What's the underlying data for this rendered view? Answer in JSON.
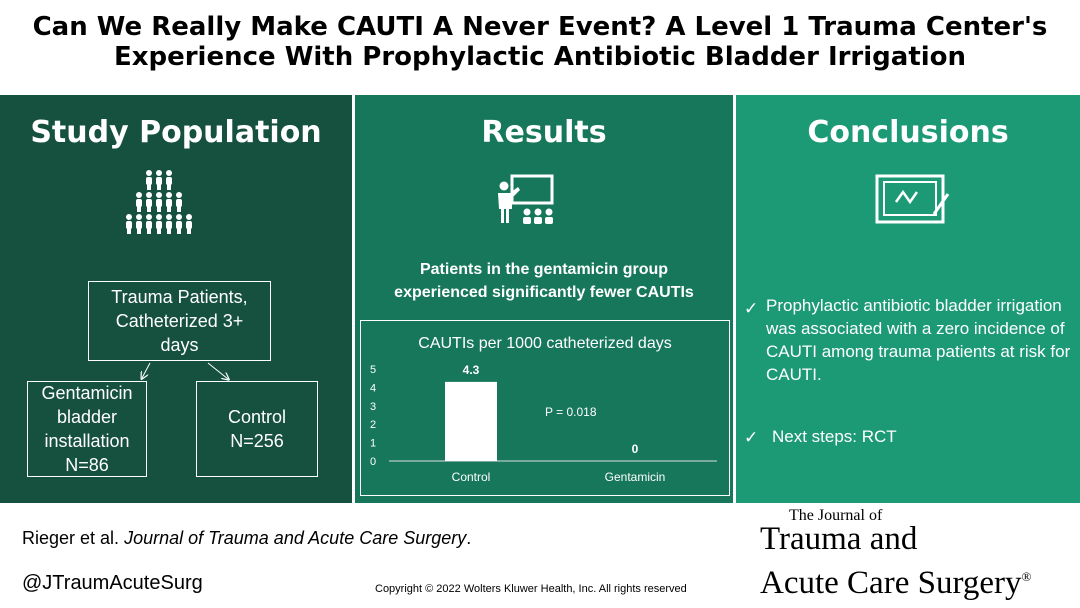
{
  "title": {
    "line1": "Can We Really Make CAUTI A Never Event? A Level 1 Trauma Center's",
    "line2": "Experience With Prophylactic Antibiotic Bladder Irrigation"
  },
  "study": {
    "heading": "Study Population",
    "box_main": "Trauma Patients, Catheterized 3+ days",
    "box_left": "Gentamicin bladder installation N=86",
    "box_right": "Control N=256"
  },
  "results": {
    "heading": "Results",
    "finding": "Patients in the gentamicin group experienced significantly fewer CAUTIs"
  },
  "chart_data": {
    "type": "bar",
    "title": "CAUTIs per 1000 catheterized days",
    "categories": [
      "Control",
      "Gentamicin"
    ],
    "values": [
      4.3,
      0
    ],
    "data_labels": [
      "4.3",
      "0"
    ],
    "yticks": [
      "0",
      "1",
      "2",
      "3",
      "4",
      "5"
    ],
    "ylim": [
      0,
      5
    ],
    "annotation": "P = 0.018",
    "bar_color": "#ffffff",
    "grid": false
  },
  "conclusions": {
    "heading": "Conclusions",
    "point1": "Prophylactic antibiotic bladder irrigation was associated with a zero incidence of CAUTI among trauma patients at risk for CAUTI.",
    "point2": "Next steps: RCT"
  },
  "footer": {
    "citation_author": "Rieger et al.",
    "citation_journal": "Journal of Trauma and Acute Care Surgery",
    "citation_end": ".",
    "handle": "@JTraumAcuteSurg",
    "copyright": "Copyright © 2022 Wolters Kluwer Health, Inc. All rights reserved",
    "journal_line1": "The Journal of",
    "journal_line2": "Trauma and",
    "journal_line3": "Acute Care Surgery",
    "journal_mark": "®"
  }
}
